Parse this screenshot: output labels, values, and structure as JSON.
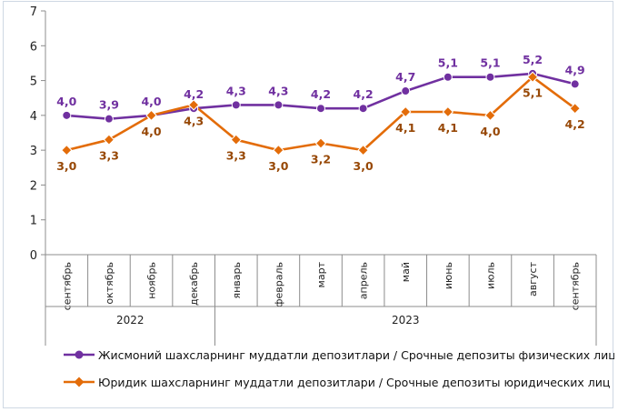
{
  "chart_data": {
    "type": "line",
    "categories": [
      "сентябрь",
      "октябрь",
      "ноябрь",
      "декабрь",
      "январь",
      "февраль",
      "март",
      "апрель",
      "май",
      "июнь",
      "июль",
      "август",
      "сентябрь"
    ],
    "years": [
      {
        "label": "2022",
        "start": 0,
        "end": 3
      },
      {
        "label": "2023",
        "start": 4,
        "end": 12
      }
    ],
    "ylim": [
      0,
      7
    ],
    "yticks": [
      "0",
      "1",
      "2",
      "3",
      "4",
      "5",
      "6",
      "7"
    ],
    "grid": false,
    "legend_position": "bottom",
    "series": [
      {
        "name": "Жисмоний шахсларнинг муддатли депозитлари / Срочные депозиты физических лиц",
        "color": "#7030a0",
        "marker": "circle",
        "values": [
          4.0,
          3.9,
          4.0,
          4.2,
          4.3,
          4.3,
          4.2,
          4.2,
          4.7,
          5.1,
          5.1,
          5.2,
          4.9
        ],
        "labels": [
          "4,0",
          "3,9",
          "4,0",
          "4,2",
          "4,3",
          "4,3",
          "4,2",
          "4,2",
          "4,7",
          "5,1",
          "5,1",
          "5,2",
          "4,9"
        ],
        "label_pos": "above"
      },
      {
        "name": "Юридик шахсларнинг муддатли депозитлари / Срочные депозиты юридических лиц",
        "color": "#e36c09",
        "label_color": "#974806",
        "marker": "diamond",
        "values": [
          3.0,
          3.3,
          4.0,
          4.3,
          3.3,
          3.0,
          3.2,
          3.0,
          4.1,
          4.1,
          4.0,
          5.1,
          4.2
        ],
        "labels": [
          "3,0",
          "3,3",
          "4,0",
          "4,3",
          "3,3",
          "3,0",
          "3,2",
          "3,0",
          "4,1",
          "4,1",
          "4,0",
          "5,1",
          "4,2"
        ],
        "label_pos": "below"
      }
    ]
  }
}
